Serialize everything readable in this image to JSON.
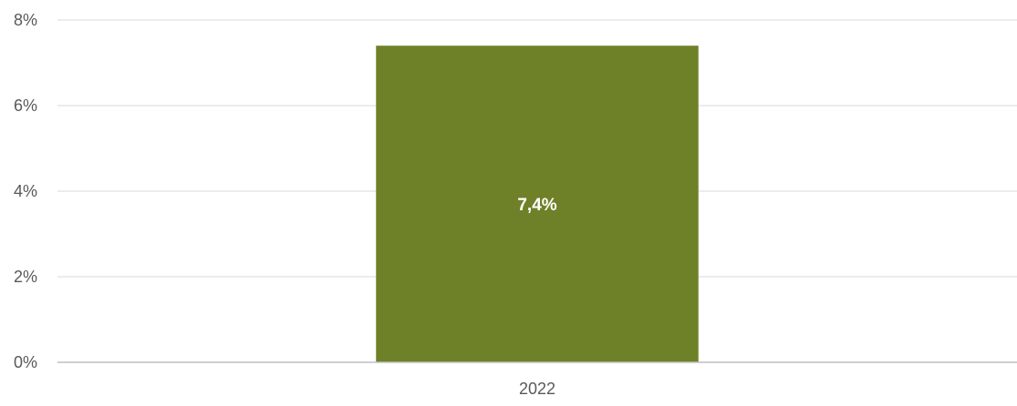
{
  "chart_data": {
    "type": "bar",
    "categories": [
      "2022"
    ],
    "series": [
      {
        "values": [
          7.4
        ]
      }
    ],
    "data_labels": [
      "7,4%"
    ],
    "y_ticks": [
      0,
      2,
      4,
      6,
      8
    ],
    "y_tick_labels": [
      "0%",
      "2%",
      "4%",
      "6%",
      "8%"
    ],
    "ylim": [
      0,
      8
    ],
    "grid": true,
    "legend": "none",
    "title": "",
    "xlabel": "",
    "ylabel": "",
    "colors": {
      "bar": "#6e8129",
      "grid": "#d9d9d9",
      "axis": "#bfbfbf",
      "tick_text": "#595959",
      "label_text": "#ffffff"
    }
  }
}
